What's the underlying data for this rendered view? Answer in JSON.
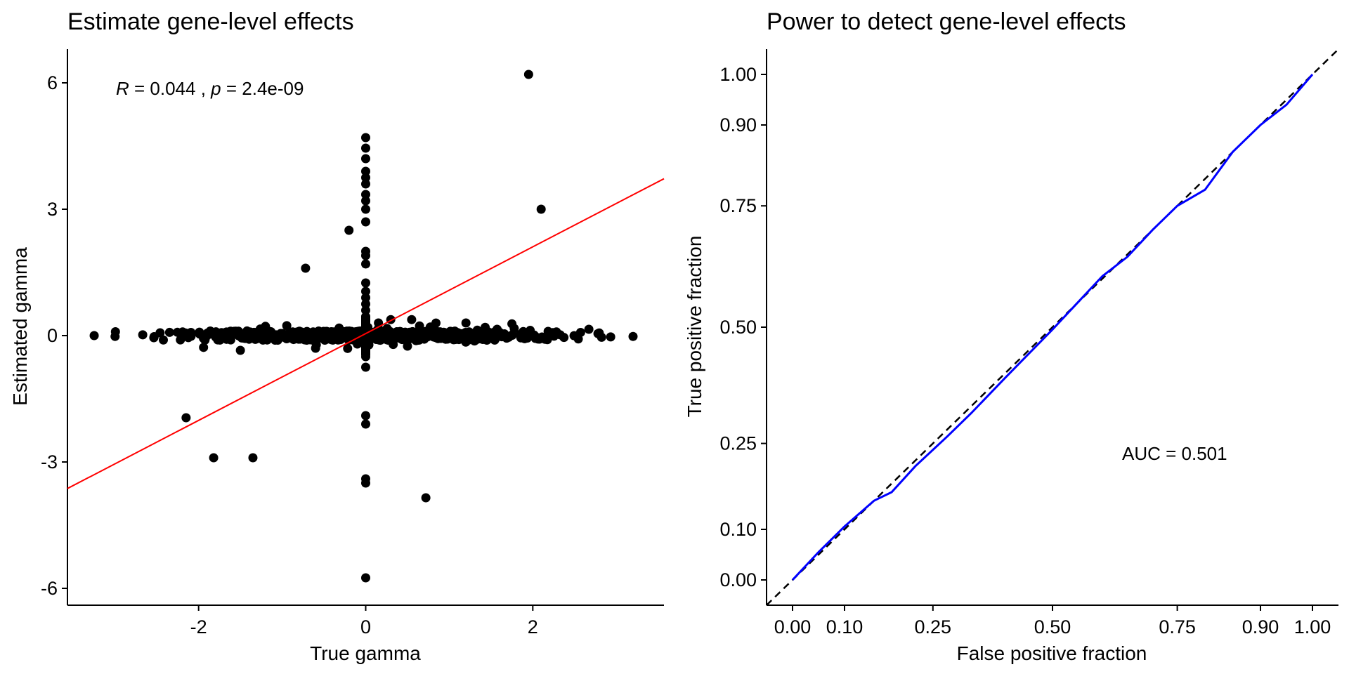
{
  "chart_data": [
    {
      "type": "scatter",
      "title": "Estimate gene-level effects",
      "xlabel": "True gamma",
      "ylabel": "Estimated gamma",
      "xlim": [
        -3.57,
        3.57
      ],
      "ylim": [
        -6.4,
        6.8
      ],
      "xticks": [
        -2,
        0,
        2
      ],
      "xtick_labels": [
        "-2",
        "0",
        "2"
      ],
      "yticks": [
        -6,
        -3,
        0,
        3,
        6
      ],
      "ytick_labels": [
        "-6",
        "-3",
        "0",
        "3",
        "6"
      ],
      "annotation": {
        "r_symbol": "R",
        "r_text": " = 0.044 , ",
        "p_symbol": "p",
        "p_text": " = 2.4e-09"
      },
      "regression_line": {
        "color": "#ff0000",
        "intercept": 0.047,
        "slope": 1.03
      },
      "point_color": "#000000",
      "outliers": [
        [
          1.95,
          6.2
        ],
        [
          2.1,
          3.0
        ],
        [
          -0.2,
          2.5
        ],
        [
          -0.72,
          1.6
        ],
        [
          -2.15,
          -1.95
        ],
        [
          -1.82,
          -2.9
        ],
        [
          -1.35,
          -2.9
        ],
        [
          0.72,
          -3.85
        ],
        [
          0,
          4.7
        ],
        [
          0,
          4.45
        ],
        [
          0,
          4.2
        ],
        [
          0,
          3.9
        ],
        [
          0,
          3.75
        ],
        [
          0,
          3.6
        ],
        [
          0,
          3.35
        ],
        [
          0,
          3.2
        ],
        [
          0,
          3.0
        ],
        [
          0,
          2.7
        ],
        [
          0,
          2.0
        ],
        [
          0,
          1.9
        ],
        [
          0,
          1.7
        ],
        [
          0,
          1.25
        ],
        [
          0,
          1.05
        ],
        [
          0,
          0.9
        ],
        [
          0,
          0.75
        ],
        [
          0,
          0.6
        ],
        [
          0,
          0.45
        ],
        [
          0,
          0.3
        ],
        [
          0,
          -0.5
        ],
        [
          0,
          -0.75
        ],
        [
          0,
          -1.9
        ],
        [
          0,
          -2.1
        ],
        [
          0,
          -3.4
        ],
        [
          0,
          -3.5
        ],
        [
          0,
          -5.75
        ],
        [
          -3.25,
          0.0
        ],
        [
          -3.0,
          -0.02
        ],
        [
          3.2,
          -0.02
        ],
        [
          -1.5,
          -0.35
        ],
        [
          0.3,
          0.38
        ],
        [
          0.55,
          0.38
        ],
        [
          -1.2,
          0.22
        ],
        [
          -0.6,
          -0.3
        ],
        [
          1.75,
          0.28
        ],
        [
          1.2,
          0.3
        ],
        [
          -0.1,
          -0.2
        ],
        [
          0.5,
          -0.25
        ]
      ]
    },
    {
      "type": "line",
      "title": "Power to detect gene-level effects",
      "xlabel": "False positive fraction",
      "ylabel": "True positive fraction",
      "xlim": [
        -0.05,
        1.05
      ],
      "ylim": [
        -0.05,
        1.05
      ],
      "xticks": [
        0.0,
        0.1,
        0.25,
        0.5,
        0.75,
        0.9,
        1.0
      ],
      "xtick_labels": [
        "0.00",
        "0.10",
        "0.25",
        "0.50",
        "0.75",
        "0.90",
        "1.00"
      ],
      "yticks": [
        0.0,
        0.1,
        0.25,
        0.5,
        0.75,
        0.9,
        1.0
      ],
      "ytick_labels": [
        "0.00",
        "0.10",
        "0.25",
        "0.50",
        "0.75",
        "0.90",
        "1.00"
      ],
      "annotation": "AUC = 0.501",
      "roc_color": "#0000ff",
      "roc_x": [
        0.0,
        0.05,
        0.1,
        0.15,
        0.18,
        0.22,
        0.28,
        0.33,
        0.4,
        0.5,
        0.6,
        0.65,
        0.7,
        0.75,
        0.8,
        0.85,
        0.9,
        0.95,
        1.0
      ],
      "roc_y": [
        0.0,
        0.055,
        0.105,
        0.15,
        0.165,
        0.21,
        0.265,
        0.315,
        0.39,
        0.495,
        0.605,
        0.645,
        0.7,
        0.75,
        0.78,
        0.85,
        0.9,
        0.94,
        1.0
      ]
    }
  ]
}
